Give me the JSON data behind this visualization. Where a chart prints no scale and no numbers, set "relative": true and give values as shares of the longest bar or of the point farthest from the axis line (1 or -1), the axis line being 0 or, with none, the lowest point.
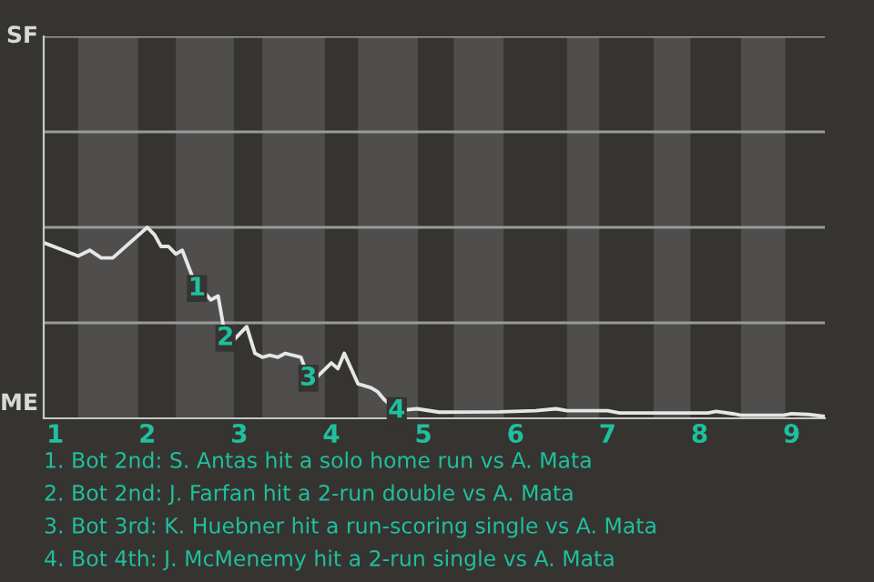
{
  "chart_data": {
    "type": "line",
    "relative": true,
    "x": [
      0.875,
      1.25,
      1.375,
      1.5,
      1.625,
      2.0,
      2.08,
      2.15,
      2.23,
      2.31,
      2.38,
      2.54,
      2.62,
      2.69,
      2.77,
      2.85,
      2.92,
      3.08,
      3.17,
      3.25,
      3.33,
      3.42,
      3.5,
      3.67,
      3.75,
      3.83,
      4.0,
      4.07,
      4.14,
      4.29,
      4.43,
      4.5,
      4.57,
      4.64,
      4.71,
      4.93,
      5.17,
      5.83,
      6.22,
      6.44,
      6.56,
      7.0,
      7.13,
      8.09,
      8.18,
      8.36,
      8.45,
      8.91,
      9.0,
      9.18,
      9.36
    ],
    "series": [
      {
        "color": "#e6e6e6",
        "values": [
          0.92,
          0.85,
          0.88,
          0.84,
          0.84,
          1.0,
          0.96,
          0.9,
          0.9,
          0.86,
          0.88,
          0.68,
          0.66,
          0.62,
          0.64,
          0.42,
          0.4,
          0.48,
          0.34,
          0.32,
          0.33,
          0.32,
          0.34,
          0.32,
          0.21,
          0.21,
          0.29,
          0.26,
          0.34,
          0.18,
          0.16,
          0.14,
          0.1,
          0.07,
          0.04,
          0.05,
          0.032,
          0.034,
          0.04,
          0.05,
          0.04,
          0.04,
          0.028,
          0.028,
          0.036,
          0.024,
          0.016,
          0.016,
          0.024,
          0.02,
          0.01
        ]
      }
    ],
    "xlim": [
      0.875,
      9.36
    ],
    "xticks": [
      1,
      2,
      3,
      4,
      5,
      6,
      7,
      8,
      9
    ],
    "ref_lines": [
      {
        "axis": "y",
        "value": 0.5,
        "color": "#9a9a9a"
      },
      {
        "axis": "y",
        "value": 1.0,
        "color": "#9a9a9a"
      },
      {
        "axis": "y",
        "value": 1.5,
        "color": "#9a9a9a"
      },
      {
        "axis": "y",
        "value": 2.0,
        "color": "#9a9a9a"
      }
    ],
    "bands": [
      {
        "axis": "x",
        "from": 1.25,
        "to": 1.9,
        "color": "#4f4e4c"
      },
      {
        "axis": "x",
        "from": 2.31,
        "to": 2.94,
        "color": "#4f4e4c"
      },
      {
        "axis": "x",
        "from": 3.25,
        "to": 3.93,
        "color": "#4f4e4c"
      },
      {
        "axis": "x",
        "from": 4.29,
        "to": 4.94,
        "color": "#4f4e4c"
      },
      {
        "axis": "x",
        "from": 5.33,
        "to": 5.87,
        "color": "#4f4e4c"
      },
      {
        "axis": "x",
        "from": 6.56,
        "to": 6.91,
        "color": "#4f4e4c"
      },
      {
        "axis": "x",
        "from": 7.5,
        "to": 7.9,
        "color": "#4f4e4c"
      },
      {
        "axis": "x",
        "from": 8.45,
        "to": 8.93,
        "color": "#4f4e4c"
      }
    ],
    "annotations": [
      "SF",
      "ME",
      "1. Bot 2nd: S. Antas hit a solo home run vs A. Mata",
      "2. Bot 2nd: J. Farfan hit a 2-run double vs A. Mata",
      "3. Bot 3rd: K. Huebner hit a run-scoring single vs A. Mata",
      "4. Bot 4th: J. McMenemy hit a 2-run single vs A. Mata",
      {
        "text": "1",
        "x": 2.54,
        "y": 0.68
      },
      {
        "text": "2",
        "x": 2.85,
        "y": 0.42
      },
      {
        "text": "3",
        "x": 3.75,
        "y": 0.21
      },
      {
        "text": "4",
        "x": 4.71,
        "y": 0.04
      }
    ]
  }
}
